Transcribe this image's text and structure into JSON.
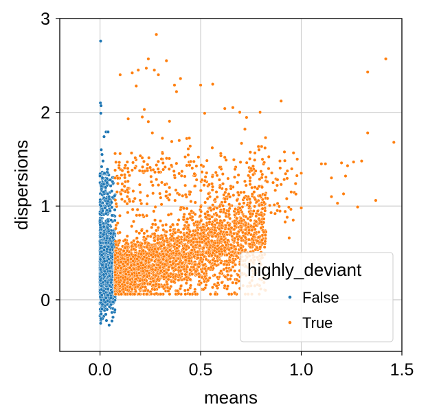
{
  "chart_data": {
    "type": "scatter",
    "xlabel": "means",
    "ylabel": "dispersions",
    "xlim": [
      -0.2,
      1.5
    ],
    "ylim": [
      -0.55,
      3.0
    ],
    "xticks": [
      0.0,
      0.5,
      1.0,
      1.5
    ],
    "xtick_labels": [
      "0.0",
      "0.5",
      "1.0",
      "1.5"
    ],
    "yticks": [
      0,
      1,
      2,
      3
    ],
    "ytick_labels": [
      "0",
      "1",
      "2",
      "3"
    ],
    "grid": true,
    "legend": {
      "title": "highly_deviant",
      "placement": "lower-right",
      "entries": [
        "False",
        "True"
      ]
    },
    "colors": {
      "False": "#1f77b4",
      "True": "#ff7f0e"
    },
    "series": [
      {
        "name": "False",
        "color": "#1f77b4",
        "points": [
          [
            0.003,
            2.76
          ],
          [
            0.002,
            2.1
          ],
          [
            0.005,
            2.07
          ],
          [
            0.004,
            1.99
          ],
          [
            0.03,
            1.79
          ],
          [
            0.04,
            1.79
          ],
          [
            0.02,
            1.74
          ],
          [
            0.006,
            1.6
          ],
          [
            0.01,
            1.55
          ],
          [
            0.015,
            1.48
          ],
          [
            0.008,
            1.42
          ],
          [
            0.022,
            1.35
          ],
          [
            0.012,
            1.3
          ],
          [
            0.035,
            1.25
          ],
          [
            0.028,
            1.2
          ],
          [
            0.018,
            1.15
          ],
          [
            0.045,
            1.1
          ],
          [
            0.04,
            1.05
          ],
          [
            0.006,
            1.0
          ],
          [
            0.025,
            0.98
          ],
          [
            0.05,
            0.95
          ],
          [
            0.06,
            0.9
          ],
          [
            0.03,
            0.92
          ],
          [
            0.055,
            0.85
          ],
          [
            0.003,
            -0.25
          ],
          [
            0.004,
            -0.2
          ],
          [
            0.006,
            -0.15
          ],
          [
            0.01,
            -0.1
          ],
          [
            0.012,
            -0.05
          ],
          [
            0.02,
            0.0
          ],
          [
            0.03,
            0.02
          ],
          [
            0.04,
            0.05
          ],
          [
            0.05,
            0.07
          ],
          [
            0.06,
            0.08
          ]
        ]
      },
      {
        "name": "True",
        "color": "#ff7f0e",
        "points": [
          [
            0.28,
            2.83
          ],
          [
            0.24,
            2.57
          ],
          [
            0.19,
            2.45
          ],
          [
            0.23,
            2.47
          ],
          [
            0.33,
            2.55
          ],
          [
            0.27,
            2.45
          ],
          [
            0.29,
            2.4
          ],
          [
            0.4,
            2.36
          ],
          [
            0.1,
            2.4
          ],
          [
            0.16,
            2.42
          ],
          [
            0.37,
            2.29
          ],
          [
            0.5,
            2.29
          ],
          [
            0.56,
            2.3
          ],
          [
            0.38,
            2.22
          ],
          [
            0.18,
            2.28
          ],
          [
            0.22,
            2.03
          ],
          [
            0.52,
            1.99
          ],
          [
            0.62,
            2.04
          ],
          [
            0.66,
            2.05
          ],
          [
            0.14,
            1.93
          ],
          [
            0.24,
            1.9
          ],
          [
            0.21,
            1.95
          ],
          [
            0.26,
            1.78
          ],
          [
            0.72,
            1.82
          ],
          [
            0.9,
            2.12
          ],
          [
            1.33,
            2.43
          ],
          [
            1.42,
            2.57
          ],
          [
            1.33,
            1.78
          ],
          [
            1.46,
            1.68
          ],
          [
            0.98,
            1.5
          ],
          [
            1.0,
            1.35
          ],
          [
            1.1,
            1.45
          ],
          [
            1.12,
            1.45
          ],
          [
            1.2,
            1.46
          ],
          [
            1.23,
            1.43
          ],
          [
            1.22,
            1.32
          ],
          [
            1.15,
            1.3
          ],
          [
            1.26,
            1.47
          ],
          [
            1.3,
            1.48
          ],
          [
            1.21,
            1.13
          ],
          [
            1.15,
            1.1
          ],
          [
            1.18,
            1.03
          ],
          [
            1.28,
            0.99
          ],
          [
            1.37,
            1.06
          ],
          [
            1.0,
            0.98
          ],
          [
            0.95,
            1.15
          ],
          [
            0.96,
            0.85
          ],
          [
            0.94,
            0.66
          ],
          [
            0.93,
            0.88
          ],
          [
            0.75,
            0.42
          ],
          [
            0.7,
            0.55
          ],
          [
            0.92,
            0.83
          ],
          [
            0.9,
            1.23
          ],
          [
            0.88,
            1.22
          ],
          [
            0.86,
            1.25
          ],
          [
            0.82,
            1.62
          ],
          [
            0.79,
            1.6
          ],
          [
            0.75,
            1.4
          ],
          [
            0.6,
            1.56
          ],
          [
            0.62,
            1.52
          ]
        ]
      }
    ]
  }
}
